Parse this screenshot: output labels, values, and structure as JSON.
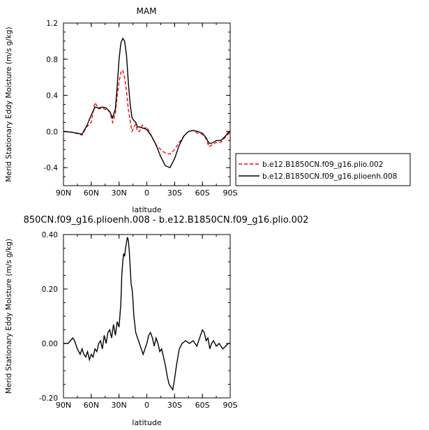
{
  "chart_data": [
    {
      "type": "line",
      "title": "MAM",
      "xlabel": "latitude",
      "ylabel": "Merid Stationary Eddy Moisture (m/s g/kg)",
      "xlim": [
        90,
        -90
      ],
      "ylim": [
        -0.6,
        1.2
      ],
      "x_ticks": [
        "90N",
        "60N",
        "30N",
        "0",
        "30S",
        "60S",
        "90S"
      ],
      "y_ticks": [
        "-0.4",
        "0.0",
        "0.4",
        "0.8",
        "1.2"
      ],
      "legend": "right",
      "series": [
        {
          "name": "b.e12.B1850CN.f09_g16.plio.002",
          "color": "#ff0000",
          "dash": true,
          "x": [
            90,
            80,
            70,
            65,
            60,
            56,
            52,
            48,
            44,
            40,
            37,
            34,
            32,
            30,
            28,
            26,
            24,
            22,
            20,
            18,
            16,
            14,
            12,
            10,
            8,
            5,
            2,
            0,
            -5,
            -10,
            -15,
            -20,
            -25,
            -30,
            -35,
            -40,
            -45,
            -50,
            -55,
            -60,
            -64,
            -67,
            -70,
            -75,
            -80,
            -85,
            -88,
            -90
          ],
          "y": [
            0.0,
            -0.01,
            -0.04,
            0.05,
            0.1,
            0.32,
            0.25,
            0.26,
            0.24,
            0.22,
            0.1,
            0.2,
            0.4,
            0.55,
            0.65,
            0.68,
            0.6,
            0.45,
            0.25,
            0.12,
            0.0,
            0.05,
            0.08,
            0.0,
            0.0,
            0.07,
            0.03,
            0.05,
            -0.05,
            -0.15,
            -0.2,
            -0.24,
            -0.25,
            -0.2,
            -0.12,
            -0.05,
            0.0,
            0.01,
            -0.02,
            -0.03,
            -0.08,
            -0.17,
            -0.15,
            -0.12,
            -0.12,
            -0.06,
            -0.03,
            0.0
          ]
        },
        {
          "name": "b.e12.B1850CN.f09_g16.plioenh.008",
          "color": "#000000",
          "dash": false,
          "x": [
            90,
            80,
            70,
            65,
            60,
            56,
            52,
            48,
            44,
            40,
            37,
            34,
            32,
            30,
            28,
            26,
            24,
            22,
            20,
            18,
            16,
            14,
            12,
            10,
            8,
            5,
            2,
            0,
            -5,
            -10,
            -15,
            -20,
            -25,
            -30,
            -35,
            -40,
            -45,
            -50,
            -55,
            -60,
            -64,
            -67,
            -70,
            -75,
            -80,
            -85,
            -88,
            -90
          ],
          "y": [
            0.0,
            -0.01,
            -0.03,
            0.06,
            0.18,
            0.27,
            0.26,
            0.27,
            0.26,
            0.22,
            0.15,
            0.25,
            0.5,
            0.8,
            0.98,
            1.03,
            1.0,
            0.85,
            0.55,
            0.3,
            0.15,
            0.12,
            0.1,
            0.05,
            0.05,
            0.04,
            0.03,
            0.02,
            -0.05,
            -0.15,
            -0.28,
            -0.38,
            -0.4,
            -0.3,
            -0.15,
            -0.05,
            0.0,
            0.01,
            0.0,
            -0.02,
            -0.07,
            -0.13,
            -0.13,
            -0.1,
            -0.1,
            -0.05,
            -0.01,
            0.0
          ]
        }
      ]
    },
    {
      "type": "line",
      "title": "850CN.f09_g16.plioenh.008 - b.e12.B1850CN.f09_g16.plio.002",
      "xlabel": "latitude",
      "ylabel": "Merid Stationary Eddy Moisture (m/s g/kg)",
      "xlim": [
        90,
        -90
      ],
      "ylim": [
        -0.2,
        0.4
      ],
      "x_ticks": [
        "90N",
        "60N",
        "30N",
        "0",
        "30S",
        "60S",
        "90S"
      ],
      "y_ticks": [
        "-0.20",
        "0.00",
        "0.20",
        "0.40"
      ],
      "series": [
        {
          "color": "#000000",
          "x": [
            90,
            85,
            80,
            78,
            75,
            72,
            70,
            68,
            66,
            64,
            62,
            60,
            58,
            56,
            54,
            52,
            50,
            48,
            46,
            44,
            42,
            40,
            38,
            36,
            34,
            32,
            30,
            28,
            27,
            26,
            25,
            24,
            23,
            22,
            21,
            20,
            19,
            18,
            17,
            16,
            15,
            14,
            12,
            10,
            8,
            6,
            4,
            2,
            0,
            -2,
            -4,
            -6,
            -8,
            -10,
            -12,
            -14,
            -16,
            -18,
            -20,
            -22,
            -24,
            -26,
            -28,
            -30,
            -32,
            -35,
            -38,
            -42,
            -46,
            -50,
            -54,
            -58,
            -60,
            -62,
            -64,
            -66,
            -68,
            -70,
            -72,
            -75,
            -78,
            -80,
            -82,
            -85,
            -88,
            -90
          ],
          "y": [
            0.0,
            0.0,
            0.02,
            0.01,
            -0.02,
            -0.04,
            -0.02,
            -0.04,
            -0.05,
            -0.03,
            -0.06,
            -0.04,
            -0.05,
            -0.02,
            -0.03,
            0.0,
            0.01,
            -0.02,
            0.03,
            0.0,
            0.04,
            0.05,
            0.02,
            0.07,
            0.03,
            0.08,
            0.06,
            0.15,
            0.25,
            0.3,
            0.33,
            0.32,
            0.35,
            0.37,
            0.39,
            0.38,
            0.34,
            0.28,
            0.22,
            0.2,
            0.16,
            0.1,
            0.04,
            0.02,
            0.0,
            -0.02,
            -0.04,
            -0.02,
            0.0,
            0.03,
            0.04,
            0.02,
            -0.01,
            0.02,
            0.0,
            -0.03,
            -0.02,
            -0.05,
            -0.08,
            -0.12,
            -0.15,
            -0.16,
            -0.17,
            -0.13,
            -0.08,
            -0.02,
            0.0,
            0.01,
            0.0,
            0.01,
            -0.01,
            0.03,
            0.05,
            0.04,
            0.01,
            0.02,
            -0.02,
            0.0,
            0.01,
            -0.01,
            0.0,
            -0.01,
            -0.02,
            -0.01,
            0.0,
            0.0
          ]
        }
      ]
    }
  ]
}
